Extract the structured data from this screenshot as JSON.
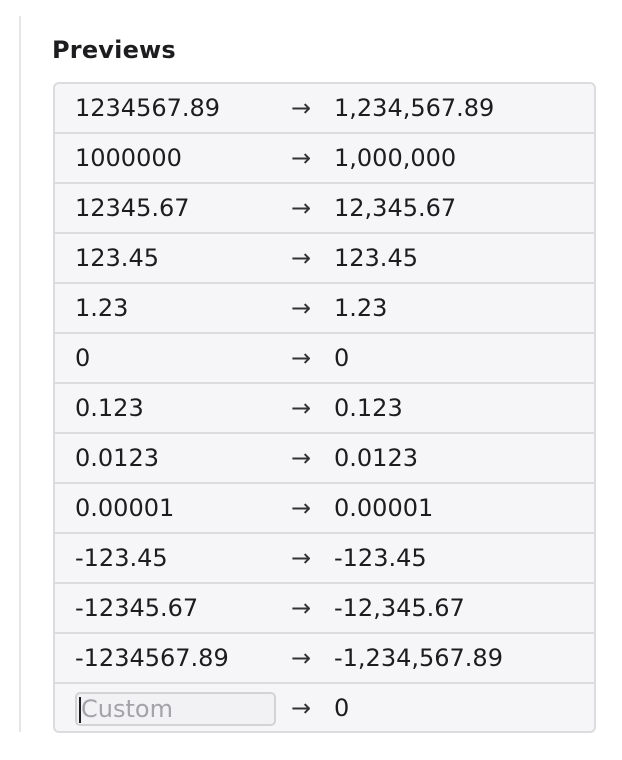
{
  "previews": {
    "title": "Previews",
    "arrow": "→",
    "rows": [
      {
        "input": "1234567.89",
        "output": "1,234,567.89"
      },
      {
        "input": "1000000",
        "output": "1,000,000"
      },
      {
        "input": "12345.67",
        "output": "12,345.67"
      },
      {
        "input": "123.45",
        "output": "123.45"
      },
      {
        "input": "1.23",
        "output": "1.23"
      },
      {
        "input": "0",
        "output": "0"
      },
      {
        "input": "0.123",
        "output": "0.123"
      },
      {
        "input": "0.0123",
        "output": "0.0123"
      },
      {
        "input": "0.00001",
        "output": "0.00001"
      },
      {
        "input": "-123.45",
        "output": "-123.45"
      },
      {
        "input": "-12345.67",
        "output": "-12,345.67"
      },
      {
        "input": "-1234567.89",
        "output": "-1,234,567.89"
      }
    ],
    "custom": {
      "value": "",
      "placeholder": "Custom",
      "output": "0"
    }
  }
}
